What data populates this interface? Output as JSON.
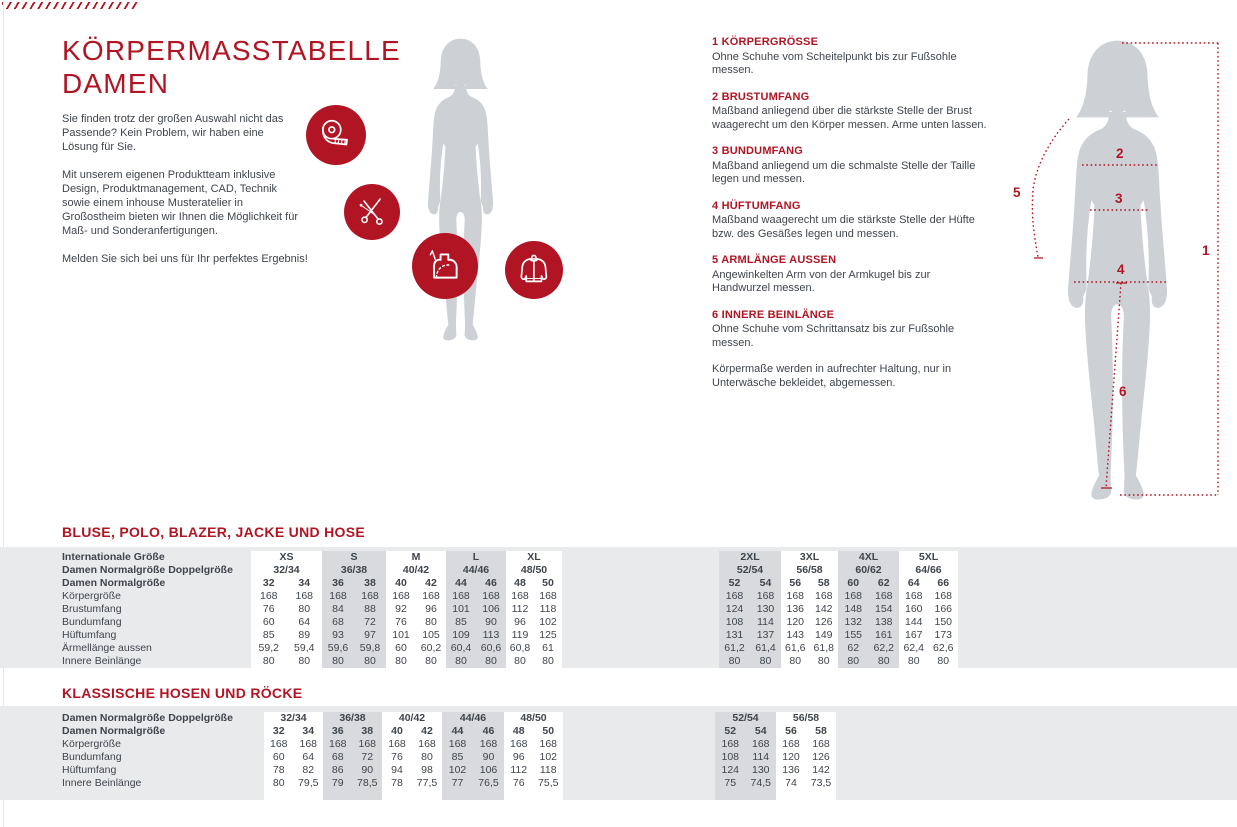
{
  "page": {
    "title": "KÖRPERMASSTABELLE DAMEN",
    "intro": [
      "Sie finden trotz der großen Auswahl nicht das Passende? Kein Problem, wir haben eine Lösung für Sie.",
      "Mit unserem eigenen Produktteam inklusive Design, Produktmanagement, CAD, Technik sowie einem inhouse Musteratelier in Großostheim bieten wir Ihnen die Möglichkeit für Maß- und Sonderanfertigungen.",
      "Melden Sie sich bei uns für Ihr perfektes Ergebnis!"
    ]
  },
  "instructions": [
    {
      "num": "1",
      "title": "KÖRPERGRÖSSE",
      "body": "Ohne Schuhe vom Scheitelpunkt bis zur Fußsohle messen."
    },
    {
      "num": "2",
      "title": "BRUSTUMFANG",
      "body": "Maßband anliegend über die stärkste Stelle der Brust waagerecht um den Körper messen. Arme unten lassen."
    },
    {
      "num": "3",
      "title": "BUNDUMFANG",
      "body": "Maßband anliegend um die schmalste Stelle der Taille legen und messen."
    },
    {
      "num": "4",
      "title": "HÜFTUMFANG",
      "body": "Maßband waagerecht um die stärkste Stelle der Hüfte bzw. des Gesäßes legen und messen."
    },
    {
      "num": "5",
      "title": "ARMLÄNGE AUSSEN",
      "body": "Angewinkelten Arm von der Armkugel bis zur Handwurzel messen."
    },
    {
      "num": "6",
      "title": "INNERE BEINLÄNGE",
      "body": "Ohne Schuhe vom Schrittansatz bis zur Fußsohle messen."
    }
  ],
  "note": "Körpermaße werden in aufrechter Haltung, nur in Unterwäsche bekleidet, abgemessen.",
  "figure": {
    "markers": [
      "1",
      "2",
      "3",
      "4",
      "5",
      "6"
    ]
  },
  "icons": [
    "measuring-tape",
    "scissors",
    "sewing-pattern",
    "jacket"
  ],
  "colors": {
    "red": "#b11523",
    "band": "#e9eaeb",
    "shaded": "#d8dadd",
    "silhouette": "#cdd1d6",
    "text": "#3f454d"
  },
  "tables": [
    {
      "title": "BLUSE, POLO, BLAZER, JACKE UND HOSE",
      "row_labels": [
        "Internationale Größe",
        "Damen Normalgröße Doppelgröße",
        "Damen Normalgröße",
        "Körpergröße",
        "Brustumfang",
        "Bundumfang",
        "Hüftumfang",
        "Ärmellänge aussen",
        "Innere Beinlänge"
      ],
      "groups": [
        {
          "int_size": "XS",
          "double_size": "32/34",
          "sizes": [
            "32",
            "34"
          ],
          "shaded": false,
          "rows": [
            [
              "168",
              "168"
            ],
            [
              "76",
              "80"
            ],
            [
              "60",
              "64"
            ],
            [
              "85",
              "89"
            ],
            [
              "59,2",
              "59,4"
            ],
            [
              "80",
              "80"
            ]
          ]
        },
        {
          "int_size": "S",
          "double_size": "36/38",
          "sizes": [
            "36",
            "38"
          ],
          "shaded": true,
          "rows": [
            [
              "168",
              "168"
            ],
            [
              "84",
              "88"
            ],
            [
              "68",
              "72"
            ],
            [
              "93",
              "97"
            ],
            [
              "59,6",
              "59,8"
            ],
            [
              "80",
              "80"
            ]
          ]
        },
        {
          "int_size": "M",
          "double_size": "40/42",
          "sizes": [
            "40",
            "42"
          ],
          "shaded": false,
          "rows": [
            [
              "168",
              "168"
            ],
            [
              "92",
              "96"
            ],
            [
              "76",
              "80"
            ],
            [
              "101",
              "105"
            ],
            [
              "60",
              "60,2"
            ],
            [
              "80",
              "80"
            ]
          ]
        },
        {
          "int_size": "L",
          "double_size": "44/46",
          "sizes": [
            "44",
            "46"
          ],
          "shaded": true,
          "rows": [
            [
              "168",
              "168"
            ],
            [
              "101",
              "106"
            ],
            [
              "85",
              "90"
            ],
            [
              "109",
              "113"
            ],
            [
              "60,4",
              "60,6"
            ],
            [
              "80",
              "80"
            ]
          ]
        },
        {
          "int_size": "XL",
          "double_size": "48/50",
          "sizes": [
            "48",
            "50"
          ],
          "shaded": false,
          "rows": [
            [
              "168",
              "168"
            ],
            [
              "112",
              "118"
            ],
            [
              "96",
              "102"
            ],
            [
              "119",
              "125"
            ],
            [
              "60,8",
              "61"
            ],
            [
              "80",
              "80"
            ]
          ]
        },
        {
          "gap": true
        },
        {
          "int_size": "2XL",
          "double_size": "52/54",
          "sizes": [
            "52",
            "54"
          ],
          "shaded": true,
          "rows": [
            [
              "168",
              "168"
            ],
            [
              "124",
              "130"
            ],
            [
              "108",
              "114"
            ],
            [
              "131",
              "137"
            ],
            [
              "61,2",
              "61,4"
            ],
            [
              "80",
              "80"
            ]
          ]
        },
        {
          "int_size": "3XL",
          "double_size": "56/58",
          "sizes": [
            "56",
            "58"
          ],
          "shaded": false,
          "rows": [
            [
              "168",
              "168"
            ],
            [
              "136",
              "142"
            ],
            [
              "120",
              "126"
            ],
            [
              "143",
              "149"
            ],
            [
              "61,6",
              "61,8"
            ],
            [
              "80",
              "80"
            ]
          ]
        },
        {
          "int_size": "4XL",
          "double_size": "60/62",
          "sizes": [
            "60",
            "62"
          ],
          "shaded": true,
          "rows": [
            [
              "168",
              "168"
            ],
            [
              "148",
              "154"
            ],
            [
              "132",
              "138"
            ],
            [
              "155",
              "161"
            ],
            [
              "62",
              "62,2"
            ],
            [
              "80",
              "80"
            ]
          ]
        },
        {
          "int_size": "5XL",
          "double_size": "64/66",
          "sizes": [
            "64",
            "66"
          ],
          "shaded": false,
          "rows": [
            [
              "168",
              "168"
            ],
            [
              "160",
              "166"
            ],
            [
              "144",
              "150"
            ],
            [
              "167",
              "173"
            ],
            [
              "62,4",
              "62,6"
            ],
            [
              "80",
              "80"
            ]
          ]
        }
      ]
    },
    {
      "title": "KLASSISCHE HOSEN UND RÖCKE",
      "row_labels": [
        "Damen Normalgröße Doppelgröße",
        "Damen Normalgröße",
        "Körpergröße",
        "Bundumfang",
        "Hüftumfang",
        "Innere Beinlänge"
      ],
      "groups": [
        {
          "double_size": "32/34",
          "sizes": [
            "32",
            "34"
          ],
          "shaded": false,
          "rows": [
            [
              "168",
              "168"
            ],
            [
              "60",
              "64"
            ],
            [
              "78",
              "82"
            ],
            [
              "80",
              "79,5"
            ]
          ]
        },
        {
          "double_size": "36/38",
          "sizes": [
            "36",
            "38"
          ],
          "shaded": true,
          "rows": [
            [
              "168",
              "168"
            ],
            [
              "68",
              "72"
            ],
            [
              "86",
              "90"
            ],
            [
              "79",
              "78,5"
            ]
          ]
        },
        {
          "double_size": "40/42",
          "sizes": [
            "40",
            "42"
          ],
          "shaded": false,
          "rows": [
            [
              "168",
              "168"
            ],
            [
              "76",
              "80"
            ],
            [
              "94",
              "98"
            ],
            [
              "78",
              "77,5"
            ]
          ]
        },
        {
          "double_size": "44/46",
          "sizes": [
            "44",
            "46"
          ],
          "shaded": true,
          "rows": [
            [
              "168",
              "168"
            ],
            [
              "85",
              "90"
            ],
            [
              "102",
              "106"
            ],
            [
              "77",
              "76,5"
            ]
          ]
        },
        {
          "double_size": "48/50",
          "sizes": [
            "48",
            "50"
          ],
          "shaded": false,
          "rows": [
            [
              "168",
              "168"
            ],
            [
              "96",
              "102"
            ],
            [
              "112",
              "118"
            ],
            [
              "76",
              "75,5"
            ]
          ]
        },
        {
          "gap": true
        },
        {
          "double_size": "52/54",
          "sizes": [
            "52",
            "54"
          ],
          "shaded": true,
          "rows": [
            [
              "168",
              "168"
            ],
            [
              "108",
              "114"
            ],
            [
              "124",
              "130"
            ],
            [
              "75",
              "74,5"
            ]
          ]
        },
        {
          "double_size": "56/58",
          "sizes": [
            "56",
            "58"
          ],
          "shaded": false,
          "rows": [
            [
              "168",
              "168"
            ],
            [
              "120",
              "126"
            ],
            [
              "136",
              "142"
            ],
            [
              "74",
              "73,5"
            ]
          ]
        }
      ]
    }
  ]
}
